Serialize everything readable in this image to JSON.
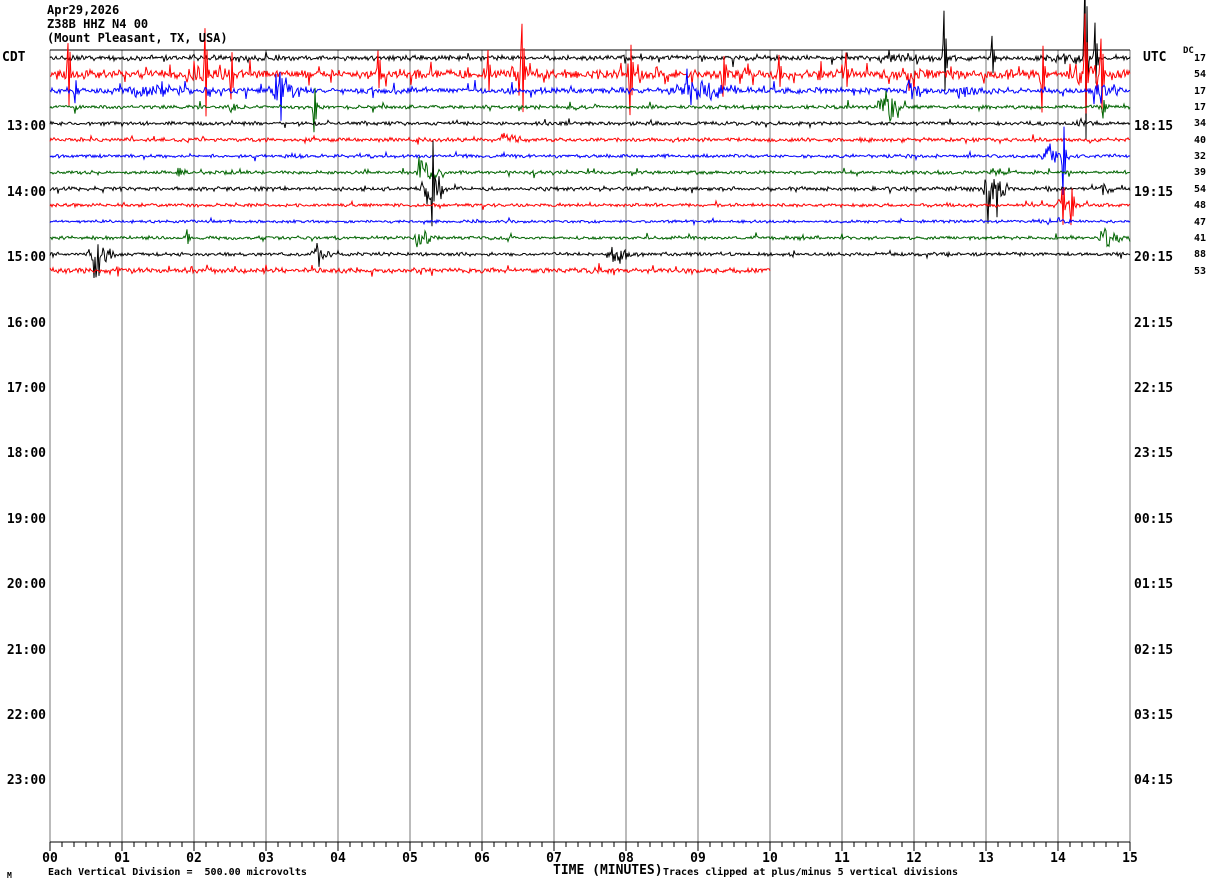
{
  "title": {
    "line1": "Apr29,2026",
    "line2": "Z38B HHZ N4 00",
    "line3": "(Mount Pleasant, TX, USA)"
  },
  "axes": {
    "left_timezone_label": "CDT",
    "right_timezone_label": "UTC",
    "dc_header": "DC",
    "x_axis_title": "TIME (MINUTES)"
  },
  "footer": {
    "left_mark": "M",
    "division_text": "Each Vertical Division =  500.00 microvolts",
    "clip_note": "Traces clipped at plus/minus 5 vertical divisions"
  },
  "chart_data": {
    "type": "line",
    "subtype": "helicorder-seismogram",
    "title": "Apr29,2026 Z38B HHZ N4 00 (Mount Pleasant, TX, USA)",
    "xlabel": "TIME (MINUTES)",
    "x_ticks": [
      "00",
      "01",
      "02",
      "03",
      "04",
      "05",
      "06",
      "07",
      "08",
      "09",
      "10",
      "11",
      "12",
      "13",
      "14",
      "15"
    ],
    "minutes_per_row": 15,
    "minor_ticks_per_minute": 6,
    "microvolts_per_division": 500.0,
    "clip_divisions": 5,
    "grid_color": "#777777",
    "axis_color": "#000000",
    "trace_color_cycle": [
      "#000000",
      "#ff0000",
      "#0000ff",
      "#006400"
    ],
    "left_time_labels": [
      {
        "row": 4,
        "text": "13:00"
      },
      {
        "row": 8,
        "text": "14:00"
      },
      {
        "row": 12,
        "text": "15:00"
      },
      {
        "row": 16,
        "text": "16:00"
      },
      {
        "row": 20,
        "text": "17:00"
      },
      {
        "row": 24,
        "text": "18:00"
      },
      {
        "row": 28,
        "text": "19:00"
      },
      {
        "row": 32,
        "text": "20:00"
      },
      {
        "row": 36,
        "text": "21:00"
      },
      {
        "row": 40,
        "text": "22:00"
      },
      {
        "row": 44,
        "text": "23:00"
      }
    ],
    "right_time_labels": [
      {
        "row": 4,
        "text": "18:15"
      },
      {
        "row": 8,
        "text": "19:15"
      },
      {
        "row": 12,
        "text": "20:15"
      },
      {
        "row": 16,
        "text": "21:15"
      },
      {
        "row": 20,
        "text": "22:15"
      },
      {
        "row": 24,
        "text": "23:15"
      },
      {
        "row": 28,
        "text": "00:15"
      },
      {
        "row": 32,
        "text": "01:15"
      },
      {
        "row": 36,
        "text": "02:15"
      },
      {
        "row": 40,
        "text": "03:15"
      },
      {
        "row": 44,
        "text": "04:15"
      }
    ],
    "rows": [
      {
        "color": "#000000",
        "dc_offset": "17",
        "noise": 1.5,
        "spike_prob": 0.035,
        "spike_amp": 5,
        "end_min": 15,
        "events": [
          {
            "t": "burst",
            "m0": 11.3,
            "m1": 12.8,
            "amp": 4
          },
          {
            "t": "burst",
            "m0": 13.8,
            "m1": 15,
            "amp": 5
          },
          {
            "t": "spike",
            "m": 12.42,
            "amp": 44
          },
          {
            "t": "spike",
            "m": 13.08,
            "amp": 22
          },
          {
            "t": "spike",
            "m": 14.38,
            "amp": 110
          },
          {
            "t": "spike",
            "m": 14.52,
            "amp": 34
          }
        ]
      },
      {
        "color": "#ff0000",
        "dc_offset": "54",
        "noise": 2.6,
        "spike_prob": 0.07,
        "spike_amp": 8,
        "end_min": 15,
        "events": [
          {
            "t": "burst",
            "m0": 1.9,
            "m1": 2.7,
            "amp": 8
          },
          {
            "t": "burst",
            "m0": 6.2,
            "m1": 6.9,
            "amp": 8
          },
          {
            "t": "burst",
            "m0": 11.7,
            "m1": 12.7,
            "amp": 9
          },
          {
            "t": "burst",
            "m0": 14.1,
            "m1": 15,
            "amp": 11
          },
          {
            "t": "spike",
            "m": 0.25,
            "amp": 34
          },
          {
            "t": "spike",
            "m": 2.15,
            "amp": 52
          },
          {
            "t": "spike",
            "m": 2.52,
            "amp": -27
          },
          {
            "t": "spike",
            "m": 4.55,
            "amp": 24
          },
          {
            "t": "spike",
            "m": 6.08,
            "amp": 20
          },
          {
            "t": "spike",
            "m": 6.55,
            "amp": 50
          },
          {
            "t": "spike",
            "m": 8.05,
            "amp": -40
          },
          {
            "t": "spike",
            "m": 9.35,
            "amp": -25
          },
          {
            "t": "spike",
            "m": 10.12,
            "amp": 22
          },
          {
            "t": "spike",
            "m": 11.05,
            "amp": 20
          },
          {
            "t": "spike",
            "m": 13.78,
            "amp": -36
          },
          {
            "t": "spike",
            "m": 14.38,
            "amp": 60
          },
          {
            "t": "spike",
            "m": 14.6,
            "amp": 46
          }
        ]
      },
      {
        "color": "#0000ff",
        "dc_offset": "17",
        "noise": 1.8,
        "spike_prob": 0.04,
        "spike_amp": 6,
        "end_min": 15,
        "events": [
          {
            "t": "burst",
            "m0": 1.0,
            "m1": 2.35,
            "amp": 7
          },
          {
            "t": "burst",
            "m0": 2.95,
            "m1": 3.7,
            "amp": 11
          },
          {
            "t": "burst",
            "m0": 8.55,
            "m1": 9.95,
            "amp": 11
          },
          {
            "t": "burst",
            "m0": 11.85,
            "m1": 12.3,
            "amp": 9
          },
          {
            "t": "burst",
            "m0": 12.55,
            "m1": 13.05,
            "amp": 7
          },
          {
            "t": "burst",
            "m0": 14.4,
            "m1": 15,
            "amp": 9
          },
          {
            "t": "spike",
            "m": 0.35,
            "amp": -13
          },
          {
            "t": "spike",
            "m": 3.2,
            "amp": 16
          }
        ]
      },
      {
        "color": "#006400",
        "dc_offset": "17",
        "noise": 1.1,
        "spike_prob": 0.02,
        "spike_amp": 4,
        "end_min": 15,
        "events": [
          {
            "t": "burst",
            "m0": 0.3,
            "m1": 0.55,
            "amp": 4
          },
          {
            "t": "burst",
            "m0": 2.45,
            "m1": 2.8,
            "amp": 5
          },
          {
            "t": "burst",
            "m0": 11.45,
            "m1": 12.0,
            "amp": 11
          },
          {
            "t": "spike",
            "m": 3.67,
            "amp": -25
          },
          {
            "t": "spike",
            "m": 11.68,
            "amp": -18
          },
          {
            "t": "spike",
            "m": 14.62,
            "amp": -10
          }
        ]
      },
      {
        "color": "#000000",
        "dc_offset": "34",
        "noise": 1.05,
        "spike_prob": 0.02,
        "spike_amp": 3,
        "end_min": 15,
        "events": [
          {
            "t": "burst",
            "m0": 14.1,
            "m1": 15,
            "amp": 3
          }
        ]
      },
      {
        "color": "#ff0000",
        "dc_offset": "40",
        "noise": 1.15,
        "spike_prob": 0.025,
        "spike_amp": 3,
        "end_min": 15,
        "events": [
          {
            "t": "burst",
            "m0": 6.2,
            "m1": 6.7,
            "amp": 7
          }
        ]
      },
      {
        "color": "#0000ff",
        "dc_offset": "32",
        "noise": 1.0,
        "spike_prob": 0.02,
        "spike_amp": 3,
        "end_min": 15,
        "events": [
          {
            "t": "burst",
            "m0": 13.75,
            "m1": 14.2,
            "amp": 10
          },
          {
            "t": "spike",
            "m": 14.07,
            "amp": -38
          }
        ]
      },
      {
        "color": "#006400",
        "dc_offset": "39",
        "noise": 1.0,
        "spike_prob": 0.02,
        "spike_amp": 3,
        "end_min": 15,
        "events": [
          {
            "t": "burst",
            "m0": 1.72,
            "m1": 2.0,
            "amp": 6
          },
          {
            "t": "burst",
            "m0": 5.08,
            "m1": 5.5,
            "amp": 13
          },
          {
            "t": "burst",
            "m0": 13.0,
            "m1": 13.6,
            "amp": 4
          }
        ]
      },
      {
        "color": "#000000",
        "dc_offset": "54",
        "noise": 1.2,
        "spike_prob": 0.02,
        "spike_amp": 3,
        "end_min": 15,
        "events": [
          {
            "t": "burst",
            "m0": 5.12,
            "m1": 5.55,
            "amp": 20
          },
          {
            "t": "spike",
            "m": 5.3,
            "amp": -30
          },
          {
            "t": "burst",
            "m0": 12.95,
            "m1": 13.4,
            "amp": 20
          },
          {
            "t": "spike",
            "m": 13.1,
            "amp": -26
          },
          {
            "t": "burst",
            "m0": 14.55,
            "m1": 14.85,
            "amp": 5
          }
        ]
      },
      {
        "color": "#ff0000",
        "dc_offset": "48",
        "noise": 1.0,
        "spike_prob": 0.02,
        "spike_amp": 3,
        "end_min": 15,
        "events": [
          {
            "t": "burst",
            "m0": 13.9,
            "m1": 14.35,
            "amp": 10
          },
          {
            "t": "spike",
            "m": 14.05,
            "amp": 30
          },
          {
            "t": "spike",
            "m": 14.18,
            "amp": -20
          }
        ]
      },
      {
        "color": "#0000ff",
        "dc_offset": "47",
        "noise": 0.85,
        "spike_prob": 0.015,
        "spike_amp": 2.5,
        "end_min": 15,
        "events": [
          {
            "t": "burst",
            "m0": 13.6,
            "m1": 14.4,
            "amp": 2.5
          }
        ]
      },
      {
        "color": "#006400",
        "dc_offset": "41",
        "noise": 1.0,
        "spike_prob": 0.02,
        "spike_amp": 3,
        "end_min": 15,
        "events": [
          {
            "t": "spike",
            "m": 1.9,
            "amp": 8
          },
          {
            "t": "burst",
            "m0": 5.05,
            "m1": 5.38,
            "amp": 13
          },
          {
            "t": "burst",
            "m0": 14.55,
            "m1": 14.95,
            "amp": 12
          }
        ]
      },
      {
        "color": "#000000",
        "dc_offset": "88",
        "noise": 1.05,
        "spike_prob": 0.02,
        "spike_amp": 3,
        "end_min": 15,
        "events": [
          {
            "t": "burst",
            "m0": 0.5,
            "m1": 1.05,
            "amp": 14
          },
          {
            "t": "burst",
            "m0": 3.6,
            "m1": 4.0,
            "amp": 9
          },
          {
            "t": "burst",
            "m0": 7.7,
            "m1": 8.25,
            "amp": 8
          }
        ]
      },
      {
        "color": "#ff0000",
        "dc_offset": "53",
        "noise": 1.5,
        "spike_prob": 0.05,
        "spike_amp": 4,
        "end_min": 10,
        "events": []
      }
    ]
  }
}
